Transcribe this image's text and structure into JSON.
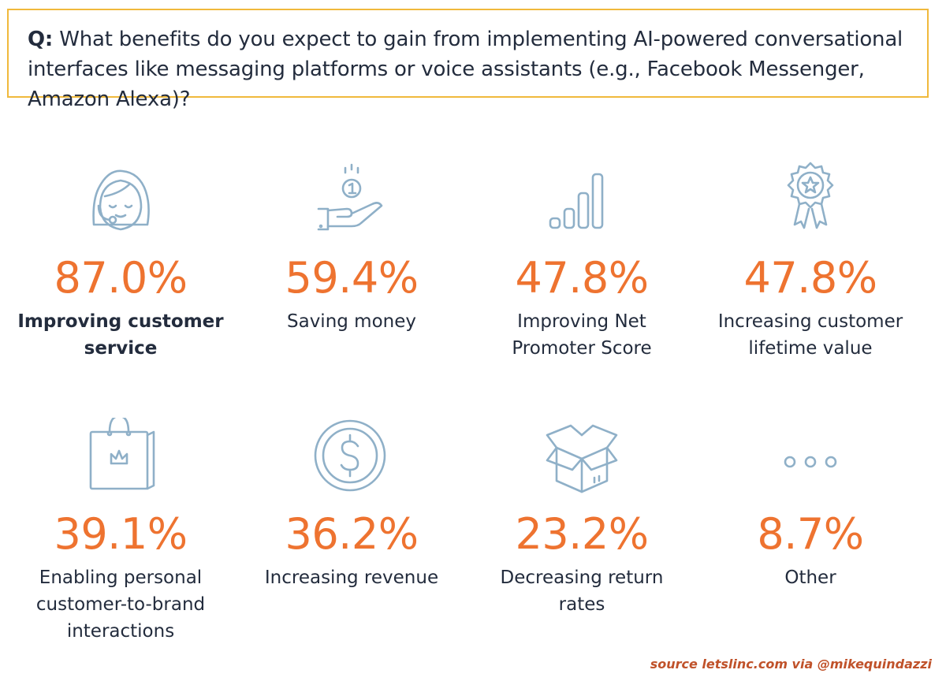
{
  "question": {
    "label": "Q:",
    "text": "What benefits do you expect to gain from implementing AI-powered conversational interfaces like messaging platforms or voice assistants (e.g., Facebook Messenger, Amazon Alexa)?"
  },
  "colors": {
    "accent": "#ee7330",
    "icon": "#8fb0c8",
    "text": "#232c3d",
    "border": "#f0b93c"
  },
  "chart_data": {
    "type": "table",
    "title": "What benefits do you expect to gain from implementing AI-powered conversational interfaces like messaging platforms or voice assistants (e.g., Facebook Messenger, Amazon Alexa)?",
    "unit": "%",
    "items": [
      {
        "icon": "customer-service-agent-icon",
        "value": "87.0%",
        "label": "Improving customer service"
      },
      {
        "icon": "coin-hand-icon",
        "value": "59.4%",
        "label": "Saving money"
      },
      {
        "icon": "signal-bars-icon",
        "value": "47.8%",
        "label": "Improving Net Promoter Score"
      },
      {
        "icon": "award-badge-icon",
        "value": "47.8%",
        "label": "Increasing customer lifetime value"
      },
      {
        "icon": "shopping-bag-icon",
        "value": "39.1%",
        "label": "Enabling personal customer-to-brand interactions"
      },
      {
        "icon": "dollar-coin-icon",
        "value": "36.2%",
        "label": "Increasing revenue"
      },
      {
        "icon": "open-box-icon",
        "value": "23.2%",
        "label": "Decreasing return rates"
      },
      {
        "icon": "ellipsis-icon",
        "value": "8.7%",
        "label": "Other"
      }
    ]
  },
  "source": "source letslinc.com via @mikequindazzi"
}
